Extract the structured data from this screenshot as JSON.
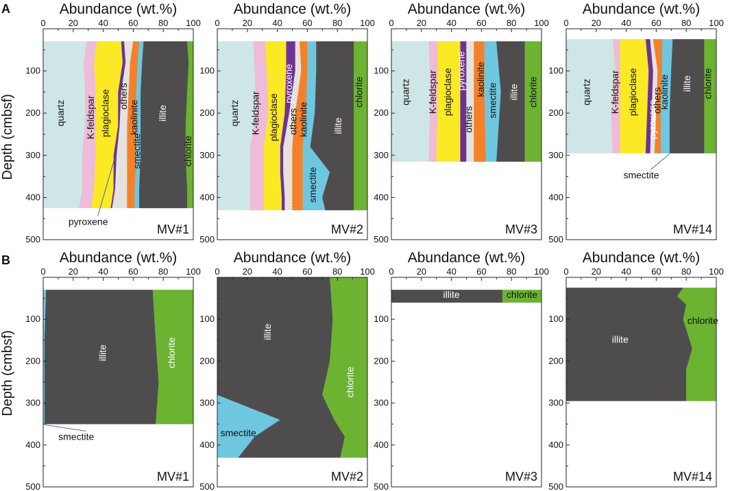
{
  "figure": {
    "x_axis_title": "Abundance (wt.%)",
    "y_axis_title": "Depth (cmbsf)",
    "x_ticks": [
      "0",
      "20",
      "40",
      "60",
      "80",
      "100"
    ],
    "y_ticks": [
      "100",
      "200",
      "300",
      "400",
      "500"
    ],
    "ylim": [
      0,
      500
    ],
    "xlim": [
      0,
      100
    ]
  },
  "chart_data": [
    {
      "panel": "A",
      "type": "area",
      "well": "MV#1",
      "layers": [
        {
          "name": "quartz",
          "color": "#cfe6e6",
          "text_color": "#111111",
          "label": "quartz",
          "label_pos": [
            12,
            200
          ]
        },
        {
          "name": "K-feldspar",
          "color": "#eebbd8",
          "text_color": "#111111",
          "label": "K-feldspar",
          "label_pos": [
            32,
            210
          ]
        },
        {
          "name": "plagioclase",
          "color": "#fbe924",
          "text_color": "#111111",
          "label": "plagioclase",
          "label_pos": [
            42,
            200
          ]
        },
        {
          "name": "pyroxene",
          "color": "#6e3296",
          "text_color": "#111111",
          "label": "",
          "label_pos": [
            50,
            200
          ]
        },
        {
          "name": "others",
          "color": "#e4e1dc",
          "text_color": "#111111",
          "label": "others",
          "label_pos": [
            54,
            160
          ]
        },
        {
          "name": "kaolinite",
          "color": "#f4812a",
          "text_color": "#111111",
          "label": "kaolinite",
          "label_pos": [
            61,
            210
          ]
        },
        {
          "name": "smectite",
          "color": "#6fc7df",
          "text_color": "#111111",
          "label": "smectite",
          "label_pos": [
            63,
            290
          ]
        },
        {
          "name": "illite",
          "color": "#4f4c4e",
          "text_color": "#ffffff",
          "label": "illite",
          "label_pos": [
            80,
            200
          ]
        },
        {
          "name": "chlorite",
          "color": "#6cb332",
          "text_color": "#111111",
          "label": "chlorite",
          "label_pos": [
            97,
            290
          ]
        }
      ],
      "profiles": [
        {
          "depth": 30,
          "bounds": [
            0,
            29,
            36,
            52,
            54,
            60,
            64,
            67,
            96,
            100
          ]
        },
        {
          "depth": 80,
          "bounds": [
            0,
            27,
            34,
            53,
            55,
            58,
            63,
            66,
            97,
            100
          ]
        },
        {
          "depth": 150,
          "bounds": [
            0,
            28,
            35,
            50,
            52,
            57,
            62,
            65,
            96,
            100
          ]
        },
        {
          "depth": 230,
          "bounds": [
            0,
            28,
            35,
            50,
            51,
            56,
            62,
            65,
            95,
            100
          ]
        },
        {
          "depth": 300,
          "bounds": [
            0,
            26,
            35,
            47,
            49,
            56,
            62,
            65,
            95,
            100
          ]
        },
        {
          "depth": 380,
          "bounds": [
            0,
            26,
            34,
            47,
            48,
            56,
            61,
            64,
            96,
            100
          ]
        },
        {
          "depth": 425,
          "bounds": [
            0,
            24,
            32,
            45,
            46,
            56,
            61,
            64,
            96,
            100
          ]
        }
      ],
      "annotation": {
        "text": "pyroxene",
        "label_at": [
          30,
          460
        ],
        "points_to": [
          49,
          290
        ]
      }
    },
    {
      "panel": "A",
      "type": "area",
      "well": "MV#2",
      "layers": [
        {
          "name": "quartz",
          "color": "#cfe6e6",
          "text_color": "#111111",
          "label": "quartz",
          "label_pos": [
            12,
            200
          ]
        },
        {
          "name": "K-feldspar",
          "color": "#eebbd8",
          "text_color": "#111111",
          "label": "K-feldspar",
          "label_pos": [
            26,
            200
          ]
        },
        {
          "name": "plagioclase",
          "color": "#fbe924",
          "text_color": "#111111",
          "label": "plagioclase",
          "label_pos": [
            38,
            210
          ]
        },
        {
          "name": "pyroxene",
          "color": "#6e3296",
          "text_color": "#ffffff",
          "label": "pyroxene",
          "label_pos": [
            48,
            130
          ]
        },
        {
          "name": "others",
          "color": "#e4e1dc",
          "text_color": "#111111",
          "label": "others",
          "label_pos": [
            51,
            220
          ]
        },
        {
          "name": "kaolinite",
          "color": "#f4812a",
          "text_color": "#111111",
          "label": "kaolinite",
          "label_pos": [
            58,
            215
          ]
        },
        {
          "name": "smectite",
          "color": "#6fc7df",
          "text_color": "#111111",
          "label": "smectite",
          "label_pos": [
            64,
            370
          ]
        },
        {
          "name": "illite",
          "color": "#4f4c4e",
          "text_color": "#ffffff",
          "label": "illite",
          "label_pos": [
            81,
            230
          ]
        },
        {
          "name": "chlorite",
          "color": "#6cb332",
          "text_color": "#111111",
          "label": "chlorite",
          "label_pos": [
            95,
            150
          ]
        }
      ],
      "profiles": [
        {
          "depth": 30,
          "bounds": [
            0,
            24,
            32,
            46,
            52,
            55,
            60,
            66,
            91,
            100
          ]
        },
        {
          "depth": 100,
          "bounds": [
            0,
            25,
            33,
            46,
            52,
            56,
            60,
            66,
            91,
            100
          ]
        },
        {
          "depth": 200,
          "bounds": [
            0,
            26,
            34,
            45,
            48,
            52,
            59,
            65,
            91,
            100
          ]
        },
        {
          "depth": 280,
          "bounds": [
            0,
            22,
            31,
            42,
            44,
            50,
            57,
            62,
            91,
            100
          ]
        },
        {
          "depth": 340,
          "bounds": [
            0,
            22,
            31,
            42,
            44,
            50,
            57,
            75,
            91,
            100
          ]
        },
        {
          "depth": 400,
          "bounds": [
            0,
            22,
            31,
            43,
            45,
            50,
            57,
            70,
            91,
            100
          ]
        },
        {
          "depth": 430,
          "bounds": [
            0,
            22,
            31,
            43,
            45,
            50,
            57,
            72,
            91,
            100
          ]
        }
      ]
    },
    {
      "panel": "A",
      "type": "area",
      "well": "MV#3",
      "layers": [
        {
          "name": "quartz",
          "color": "#cfe6e6",
          "text_color": "#111111",
          "label": "quartz",
          "label_pos": [
            10,
            150
          ]
        },
        {
          "name": "K-feldspar",
          "color": "#eebbd8",
          "text_color": "#111111",
          "label": "K-feldspar",
          "label_pos": [
            28,
            150
          ]
        },
        {
          "name": "plagioclase",
          "color": "#fbe924",
          "text_color": "#111111",
          "label": "plagioclase",
          "label_pos": [
            38,
            150
          ]
        },
        {
          "name": "pyroxene",
          "color": "#6e3296",
          "text_color": "#ffffff",
          "label": "pyroxene",
          "label_pos": [
            47,
            100
          ]
        },
        {
          "name": "others",
          "color": "#e4e1dc",
          "text_color": "#111111",
          "label": "others",
          "label_pos": [
            52,
            215
          ]
        },
        {
          "name": "kaolinite",
          "color": "#f4812a",
          "text_color": "#111111",
          "label": "kaolinite",
          "label_pos": [
            60,
            120
          ]
        },
        {
          "name": "smectite",
          "color": "#6fc7df",
          "text_color": "#111111",
          "label": "smectite",
          "label_pos": [
            68,
            170
          ]
        },
        {
          "name": "illite",
          "color": "#4f4c4e",
          "text_color": "#ffffff",
          "label": "illite",
          "label_pos": [
            82,
            150
          ]
        },
        {
          "name": "chlorite",
          "color": "#6cb332",
          "text_color": "#111111",
          "label": "chlorite",
          "label_pos": [
            95,
            150
          ]
        }
      ],
      "profiles": [
        {
          "depth": 30,
          "bounds": [
            0,
            25,
            31,
            46,
            50,
            55,
            62,
            70,
            89,
            100
          ]
        },
        {
          "depth": 150,
          "bounds": [
            0,
            26,
            31,
            46,
            50,
            55,
            62,
            73,
            89,
            100
          ]
        },
        {
          "depth": 315,
          "bounds": [
            0,
            25,
            30,
            46,
            50,
            55,
            63,
            70,
            89,
            100
          ]
        }
      ]
    },
    {
      "panel": "A",
      "type": "area",
      "well": "MV#14",
      "layers": [
        {
          "name": "quartz",
          "color": "#cfe6e6",
          "text_color": "#111111",
          "label": "quartz",
          "label_pos": [
            14,
            150
          ]
        },
        {
          "name": "K-feldspar",
          "color": "#eebbd8",
          "text_color": "#111111",
          "label": "K-feldspar",
          "label_pos": [
            33,
            150
          ]
        },
        {
          "name": "plagioclase",
          "color": "#fbe924",
          "text_color": "#111111",
          "label": "plagioclase",
          "label_pos": [
            45,
            150
          ]
        },
        {
          "name": "pyroxene",
          "color": "#6e3296",
          "text_color": "#ffffff",
          "label": "pyroxene",
          "label_pos": [
            58,
            215
          ]
        },
        {
          "name": "others",
          "color": "#e4e1dc",
          "text_color": "#111111",
          "label": "others",
          "label_pos": [
            61,
            170
          ]
        },
        {
          "name": "kaolinite",
          "color": "#f4812a",
          "text_color": "#111111",
          "label": "kaolinite",
          "label_pos": [
            66,
            150
          ]
        },
        {
          "name": "smectite",
          "color": "#6fc7df",
          "text_color": "#111111",
          "label": "",
          "label_pos": [
            70,
            150
          ]
        },
        {
          "name": "illite",
          "color": "#4f4c4e",
          "text_color": "#ffffff",
          "label": "illite",
          "label_pos": [
            81,
            130
          ]
        },
        {
          "name": "chlorite",
          "color": "#6cb332",
          "text_color": "#111111",
          "label": "chlorite",
          "label_pos": [
            95,
            130
          ]
        }
      ],
      "profiles": [
        {
          "depth": 25,
          "bounds": [
            0,
            31,
            36,
            53,
            56,
            58,
            64,
            71,
            92,
            100
          ]
        },
        {
          "depth": 100,
          "bounds": [
            0,
            33,
            36,
            55,
            58,
            61,
            64,
            70,
            92,
            100
          ]
        },
        {
          "depth": 200,
          "bounds": [
            0,
            30,
            36,
            54,
            57,
            60,
            63,
            69,
            92,
            100
          ]
        },
        {
          "depth": 295,
          "bounds": [
            0,
            31,
            36,
            53,
            56,
            59,
            63,
            69,
            92,
            100
          ]
        }
      ],
      "annotation": {
        "text": "smectite",
        "label_at": [
          50,
          350
        ],
        "points_to": [
          69,
          296
        ]
      }
    },
    {
      "panel": "B",
      "type": "area",
      "well": "MV#1",
      "layers": [
        {
          "name": "smectite",
          "color": "#6fc7df",
          "text_color": "#111111",
          "label": "",
          "label_pos": [
            1,
            200
          ]
        },
        {
          "name": "illite",
          "color": "#4f4c4e",
          "text_color": "#ffffff",
          "label": "illite",
          "label_pos": [
            40,
            180
          ]
        },
        {
          "name": "chlorite",
          "color": "#6cb332",
          "text_color": "#ffffff",
          "label": "chlorite",
          "label_pos": [
            86,
            180
          ]
        }
      ],
      "profiles": [
        {
          "depth": 30,
          "bounds": [
            0,
            2,
            73,
            100
          ]
        },
        {
          "depth": 150,
          "bounds": [
            0,
            1,
            75,
            100
          ]
        },
        {
          "depth": 250,
          "bounds": [
            0,
            1,
            77,
            100
          ]
        },
        {
          "depth": 350,
          "bounds": [
            0,
            1,
            75,
            100
          ]
        }
      ],
      "annotation": {
        "text": "smectite",
        "label_at": [
          22,
          383
        ],
        "points_to": [
          1,
          352
        ]
      }
    },
    {
      "panel": "B",
      "type": "area",
      "well": "MV#2",
      "layers": [
        {
          "name": "smectite",
          "color": "#6fc7df",
          "text_color": "#111111",
          "label": "smectite",
          "label_pos": [
            14,
            373
          ]
        },
        {
          "name": "illite",
          "color": "#4f4c4e",
          "text_color": "#ffffff",
          "label": "illite",
          "label_pos": [
            34,
            130
          ]
        },
        {
          "name": "chlorite",
          "color": "#6cb332",
          "text_color": "#ffffff",
          "label": "chlorite",
          "label_pos": [
            89,
            250
          ]
        }
      ],
      "profiles": [
        {
          "depth": 0,
          "bounds": [
            0,
            0,
            75,
            100
          ]
        },
        {
          "depth": 100,
          "bounds": [
            0,
            0,
            77,
            100
          ]
        },
        {
          "depth": 200,
          "bounds": [
            0,
            0,
            75,
            100
          ]
        },
        {
          "depth": 280,
          "bounds": [
            0,
            0,
            70,
            100
          ]
        },
        {
          "depth": 340,
          "bounds": [
            0,
            42,
            78,
            100
          ]
        },
        {
          "depth": 380,
          "bounds": [
            0,
            25,
            85,
            100
          ]
        },
        {
          "depth": 430,
          "bounds": [
            0,
            14,
            82,
            100
          ]
        }
      ]
    },
    {
      "panel": "B",
      "type": "area",
      "well": "MV#3",
      "layers": [
        {
          "name": "illite",
          "color": "#4f4c4e",
          "text_color": "#ffffff",
          "label": "illite",
          "label_pos": [
            40,
            43
          ]
        },
        {
          "name": "chlorite",
          "color": "#6cb332",
          "text_color": "#111111",
          "label": "chlorite",
          "label_pos": [
            87,
            43
          ]
        }
      ],
      "profiles": [
        {
          "depth": 30,
          "bounds": [
            0,
            74,
            100
          ]
        },
        {
          "depth": 60,
          "bounds": [
            0,
            74,
            100
          ]
        }
      ]
    },
    {
      "panel": "B",
      "type": "area",
      "well": "MV#14",
      "layers": [
        {
          "name": "illite",
          "color": "#4f4c4e",
          "text_color": "#ffffff",
          "label": "illite",
          "label_pos": [
            36,
            150
          ]
        },
        {
          "name": "chlorite",
          "color": "#6cb332",
          "text_color": "#111111",
          "label": "chlorite",
          "label_pos": [
            91,
            105
          ]
        }
      ],
      "profiles": [
        {
          "depth": 25,
          "bounds": [
            0,
            78,
            100
          ]
        },
        {
          "depth": 45,
          "bounds": [
            0,
            74,
            100
          ]
        },
        {
          "depth": 65,
          "bounds": [
            0,
            80,
            100
          ]
        },
        {
          "depth": 100,
          "bounds": [
            0,
            78,
            100
          ]
        },
        {
          "depth": 170,
          "bounds": [
            0,
            84,
            100
          ]
        },
        {
          "depth": 220,
          "bounds": [
            0,
            80,
            100
          ]
        },
        {
          "depth": 295,
          "bounds": [
            0,
            80,
            100
          ]
        }
      ]
    }
  ]
}
